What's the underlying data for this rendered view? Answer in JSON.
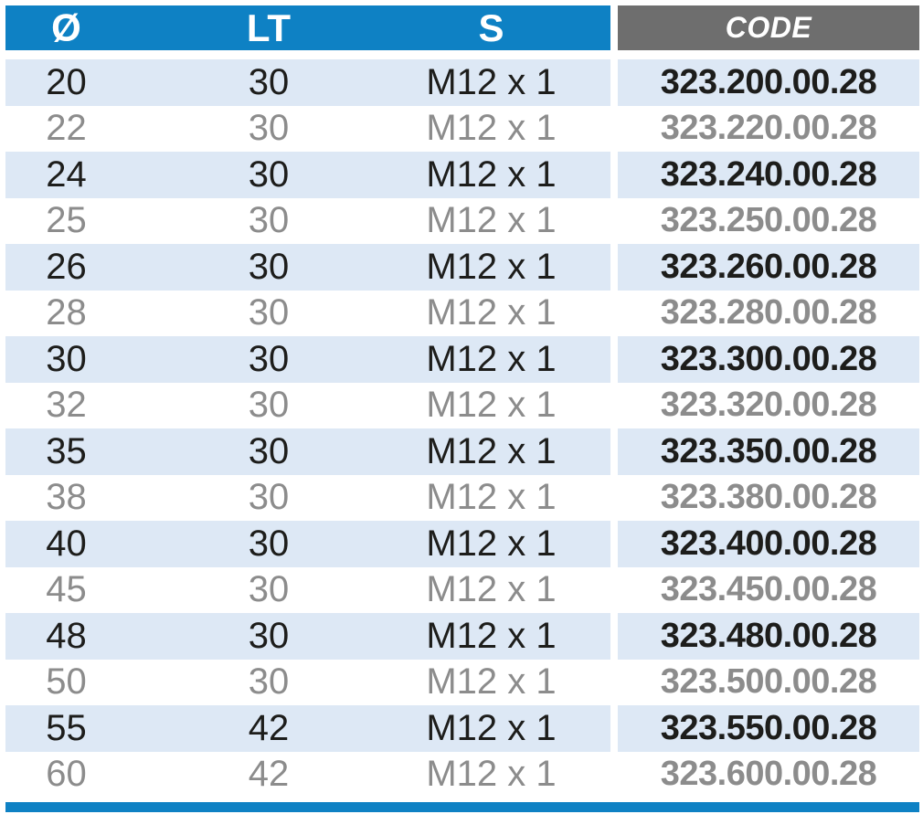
{
  "table": {
    "columns": [
      {
        "key": "d",
        "label": "Ø"
      },
      {
        "key": "lt",
        "label": "LT"
      },
      {
        "key": "s",
        "label": "S"
      },
      {
        "key": "code",
        "label": "CODE"
      }
    ],
    "rows": [
      {
        "d": "20",
        "lt": "30",
        "s": "M12 x 1",
        "code": "323.200.00.28"
      },
      {
        "d": "22",
        "lt": "30",
        "s": "M12 x 1",
        "code": "323.220.00.28"
      },
      {
        "d": "24",
        "lt": "30",
        "s": "M12 x 1",
        "code": "323.240.00.28"
      },
      {
        "d": "25",
        "lt": "30",
        "s": "M12 x 1",
        "code": "323.250.00.28"
      },
      {
        "d": "26",
        "lt": "30",
        "s": "M12 x 1",
        "code": "323.260.00.28"
      },
      {
        "d": "28",
        "lt": "30",
        "s": "M12 x 1",
        "code": "323.280.00.28"
      },
      {
        "d": "30",
        "lt": "30",
        "s": "M12 x 1",
        "code": "323.300.00.28"
      },
      {
        "d": "32",
        "lt": "30",
        "s": "M12 x 1",
        "code": "323.320.00.28"
      },
      {
        "d": "35",
        "lt": "30",
        "s": "M12 x 1",
        "code": "323.350.00.28"
      },
      {
        "d": "38",
        "lt": "30",
        "s": "M12 x 1",
        "code": "323.380.00.28"
      },
      {
        "d": "40",
        "lt": "30",
        "s": "M12 x 1",
        "code": "323.400.00.28"
      },
      {
        "d": "45",
        "lt": "30",
        "s": "M12 x 1",
        "code": "323.450.00.28"
      },
      {
        "d": "48",
        "lt": "30",
        "s": "M12 x 1",
        "code": "323.480.00.28"
      },
      {
        "d": "50",
        "lt": "30",
        "s": "M12 x 1",
        "code": "323.500.00.28"
      },
      {
        "d": "55",
        "lt": "42",
        "s": "M12 x 1",
        "code": "323.550.00.28"
      },
      {
        "d": "60",
        "lt": "42",
        "s": "M12 x 1",
        "code": "323.600.00.28"
      }
    ]
  },
  "colors": {
    "header_blue": "#0E81C4",
    "header_gray": "#6E6E6E",
    "row_alt_blue": "#DDE8F5",
    "text_dark": "#1D1D1B",
    "text_gray": "#8C8C8C"
  }
}
